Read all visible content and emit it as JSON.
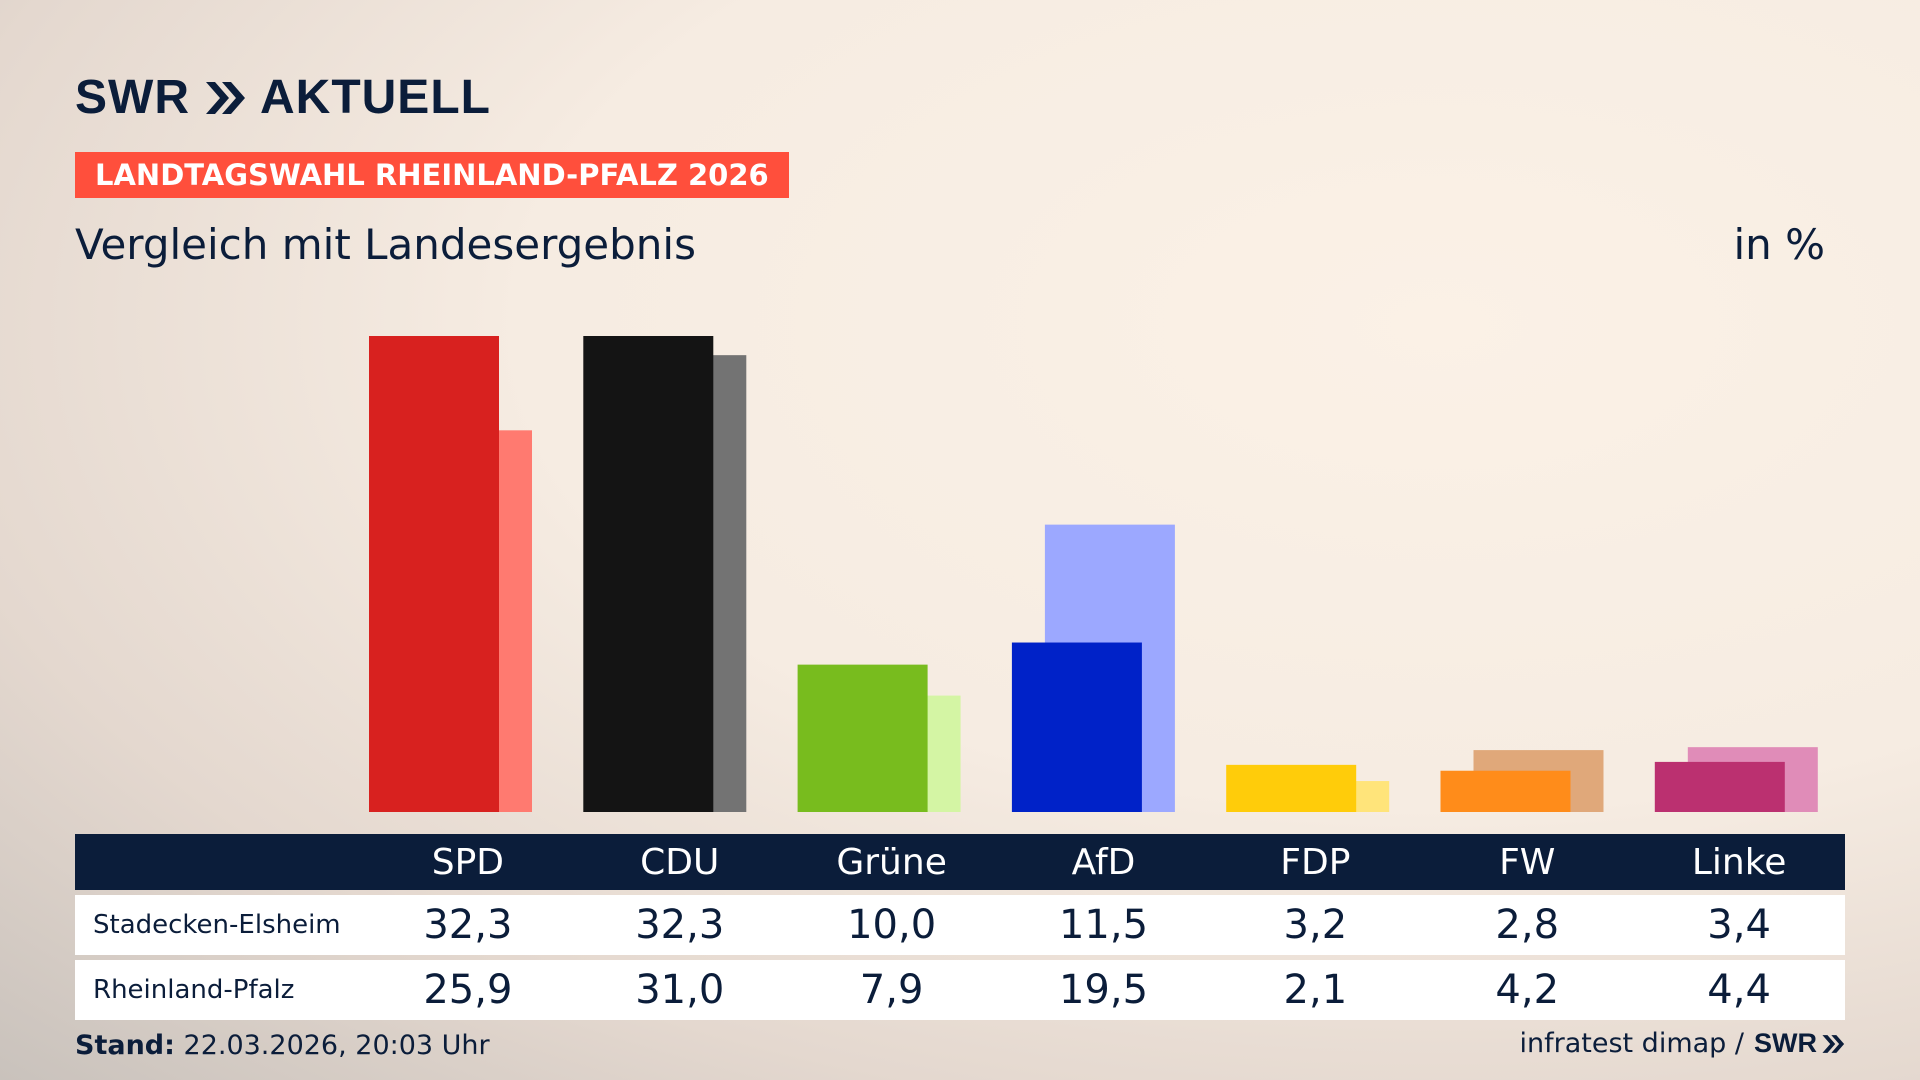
{
  "header": {
    "logo_text": "SWR",
    "logo_suffix": "AKTUELL",
    "kicker": "LANDTAGSWAHL RHEINLAND-PFALZ 2026",
    "subtitle": "Vergleich mit Landesergebnis",
    "unit": "in %"
  },
  "colors": {
    "navy": "#0b1d3a",
    "kicker": "#ff4f3c"
  },
  "chart_data": {
    "type": "bar",
    "categories": [
      "SPD",
      "CDU",
      "Grüne",
      "AfD",
      "FDP",
      "FW",
      "Linke"
    ],
    "series": [
      {
        "name": "Stadecken-Elsheim",
        "values": [
          32.3,
          32.3,
          10.0,
          11.5,
          3.2,
          2.8,
          3.4
        ],
        "colors": [
          "#d8211f",
          "#141414",
          "#78bc1e",
          "#0022c8",
          "#ffcc0a",
          "#ff8c1a",
          "#bb3070"
        ]
      },
      {
        "name": "Rheinland-Pfalz",
        "values": [
          25.9,
          31.0,
          7.9,
          19.5,
          2.1,
          4.2,
          4.4
        ],
        "colors": [
          "#ff7a70",
          "#737373",
          "#d4f5a4",
          "#9ca8ff",
          "#ffe47a",
          "#e0a87a",
          "#e08cb8"
        ]
      }
    ],
    "ylim": [
      0,
      32.3
    ]
  },
  "table": {
    "values": [
      [
        "32,3",
        "32,3",
        "10,0",
        "11,5",
        "3,2",
        "2,8",
        "3,4"
      ],
      [
        "25,9",
        "31,0",
        "7,9",
        "19,5",
        "2,1",
        "4,2",
        "4,4"
      ]
    ]
  },
  "footer": {
    "stand_label": "Stand:",
    "stand_value": "22.03.2026, 20:03 Uhr",
    "source": "infratest dimap /",
    "source_logo": "SWR"
  }
}
